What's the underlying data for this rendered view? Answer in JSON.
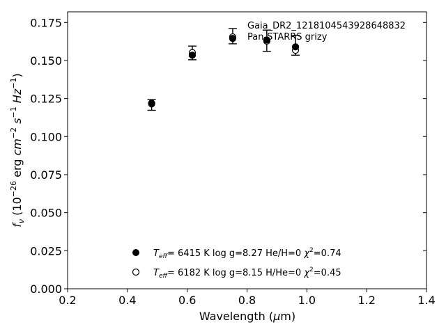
{
  "chart_data": {
    "type": "scatter",
    "title": "",
    "xlabel": "Wavelength ($\\mu$m)",
    "ylabel": "$f_{\\nu}$ ($10^{-26}$ erg $cm^{-2}$ $s^{-1}$ $Hz^{-1}$)",
    "xlim": [
      0.2,
      1.4
    ],
    "ylim": [
      0.0,
      0.182
    ],
    "xticks": [
      "0.2",
      "0.4",
      "0.6",
      "0.8",
      "1.0",
      "1.2",
      "1.4"
    ],
    "yticks": [
      "0.000",
      "0.025",
      "0.050",
      "0.075",
      "0.100",
      "0.125",
      "0.150",
      "0.175"
    ],
    "grid": false,
    "observed": {
      "name": "Gaia_DR2_1218104543928648832",
      "label": "Pan-STARRS grizy",
      "points": [
        {
          "x": 0.481,
          "y": 0.1208,
          "err": 0.0035
        },
        {
          "x": 0.617,
          "y": 0.155,
          "err": 0.0045
        },
        {
          "x": 0.752,
          "y": 0.166,
          "err": 0.005
        },
        {
          "x": 0.866,
          "y": 0.163,
          "err": 0.007
        },
        {
          "x": 0.962,
          "y": 0.16,
          "err": 0.0065
        }
      ]
    },
    "series": [
      {
        "name": "T_eff=  6415 K  log g=8.27  He/H=0  χ²=0.74",
        "marker": "filled",
        "points": [
          {
            "x": 0.481,
            "y": 0.122
          },
          {
            "x": 0.617,
            "y": 0.1535
          },
          {
            "x": 0.752,
            "y": 0.1645
          },
          {
            "x": 0.866,
            "y": 0.1635
          },
          {
            "x": 0.962,
            "y": 0.159
          }
        ]
      },
      {
        "name": "T_eff=  6182 K  log g=8.15  H/He=0  χ²=0.45",
        "marker": "open",
        "points": [
          {
            "x": 0.481,
            "y": 0.1215
          },
          {
            "x": 0.617,
            "y": 0.1552
          },
          {
            "x": 0.752,
            "y": 0.1655
          },
          {
            "x": 0.866,
            "y": 0.1628
          },
          {
            "x": 0.962,
            "y": 0.1568
          }
        ]
      }
    ],
    "legend": {
      "entries": [
        {
          "teff_label": "T",
          "teff_sub": "eff",
          "value": "6415 K",
          "logg": "log g=8.27",
          "comp": "He/H=0",
          "chi_label": "χ",
          "chi_sup": "2",
          "chi_value": "=0.74",
          "marker": "filled"
        },
        {
          "teff_label": "T",
          "teff_sub": "eff",
          "value": "6182 K",
          "logg": "log g=8.15",
          "comp": "H/He=0",
          "chi_label": "χ",
          "chi_sup": "2",
          "chi_value": "=0.45",
          "marker": "open"
        }
      ],
      "placement": "lower-center"
    },
    "colors": {
      "marker": "#000000",
      "axes": "#000000",
      "background": "#ffffff"
    }
  }
}
